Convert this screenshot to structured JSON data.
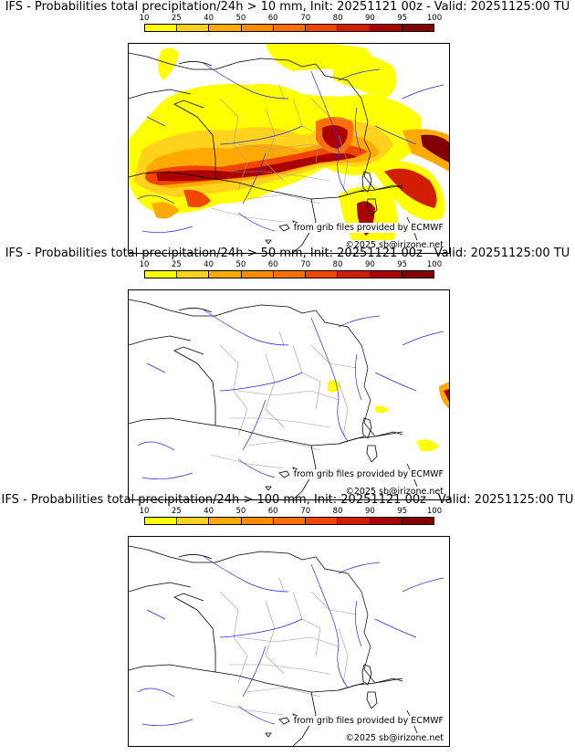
{
  "panels": [
    {
      "title": "IFS - Probabilities total precipitation/24h > 10 mm, Init: 20251121 00z - Valid: 20251125:00 TU",
      "threshold_mm": 10,
      "credit_source": "from grib files provided by ECMWF",
      "credit_copyright": "©2025 sb@irizone.net"
    },
    {
      "title": "IFS - Probabilities total precipitation/24h > 50 mm, Init: 20251121 00z - Valid: 20251125:00 TU",
      "threshold_mm": 50,
      "credit_source": "from grib files provided by ECMWF",
      "credit_copyright": "©2025 sb@irizone.net"
    },
    {
      "title": "IFS - Probabilities total precipitation/24h > 100 mm, Init: 20251121 00z - Valid: 20251125:00 TU",
      "threshold_mm": 100,
      "credit_source": "from grib files provided by ECMWF",
      "credit_copyright": "©2025 sb@irizone.net"
    }
  ],
  "legend": {
    "ticks": [
      "10",
      "25",
      "40",
      "50",
      "60",
      "70",
      "80",
      "90",
      "95",
      "100"
    ],
    "colors": [
      "#ffff00",
      "#ffd21e",
      "#ffaa00",
      "#ff8c00",
      "#ff6e00",
      "#f04600",
      "#d21e00",
      "#aa0000",
      "#820000",
      "#500000"
    ]
  },
  "colors": {
    "coast": "#000000",
    "rivers": "#2a2ae0",
    "borders": "#9a9a9a"
  }
}
